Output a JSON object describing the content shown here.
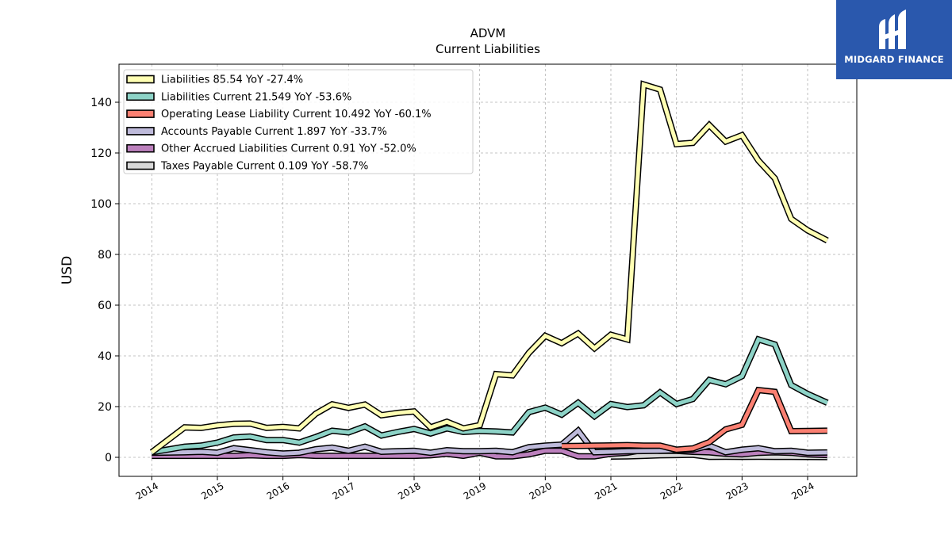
{
  "brand": {
    "name": "MIDGARD FINANCE",
    "icon": "midgard-logo-icon",
    "color": "#2a58ad"
  },
  "chart_data": {
    "type": "line",
    "title": "ADVM",
    "subtitle": "Current  Liabilities",
    "xlabel": "",
    "ylabel": "USD",
    "xlim": [
      2013.5,
      2024.75
    ],
    "ylim": [
      -7.5,
      155
    ],
    "grid": true,
    "legend_position": "top-left",
    "x_ticks": [
      "2014",
      "2015",
      "2016",
      "2017",
      "2018",
      "2019",
      "2020",
      "2021",
      "2022",
      "2023",
      "2024"
    ],
    "y_ticks": [
      0,
      20,
      40,
      60,
      80,
      100,
      120,
      140
    ],
    "series": [
      {
        "name": "Liabilities",
        "legend": "Liabilities  85.54 YoY -27.4%",
        "color": "#ffffb3",
        "x": [
          2014.0,
          2014.5,
          2014.75,
          2015.0,
          2015.25,
          2015.5,
          2015.75,
          2016.0,
          2016.25,
          2016.5,
          2016.75,
          2017.0,
          2017.25,
          2017.5,
          2017.75,
          2018.0,
          2018.25,
          2018.5,
          2018.75,
          2019.0,
          2019.25,
          2019.5,
          2019.75,
          2020.0,
          2020.25,
          2020.5,
          2020.75,
          2021.0,
          2021.25,
          2021.5,
          2021.75,
          2022.0,
          2022.25,
          2022.5,
          2022.75,
          2023.0,
          2023.25,
          2023.5,
          2023.75,
          2024.0,
          2024.3
        ],
        "values": [
          2.0,
          11.8,
          11.6,
          12.6,
          13.2,
          13.3,
          11.6,
          12.0,
          11.4,
          17.2,
          20.9,
          19.5,
          20.8,
          16.6,
          17.5,
          18.1,
          11.8,
          14.0,
          11.4,
          12.7,
          32.8,
          32.3,
          41.2,
          47.9,
          45.0,
          48.8,
          43.0,
          48.3,
          46.5,
          147.0,
          145.0,
          123.5,
          124.0,
          131.0,
          124.5,
          127.0,
          117.0,
          110.0,
          94.0,
          89.5,
          85.5
        ]
      },
      {
        "name": "Liabilities Current",
        "legend": "Liabilities Current  21.549 YoY -53.6%",
        "color": "#8dd3c7",
        "x": [
          2014.0,
          2014.5,
          2014.75,
          2015.0,
          2015.25,
          2015.5,
          2015.75,
          2016.0,
          2016.25,
          2016.5,
          2016.75,
          2017.0,
          2017.25,
          2017.5,
          2017.75,
          2018.0,
          2018.25,
          2018.5,
          2018.75,
          2019.0,
          2019.25,
          2019.5,
          2019.75,
          2020.0,
          2020.25,
          2020.5,
          2020.75,
          2021.0,
          2021.25,
          2021.5,
          2021.75,
          2022.0,
          2022.25,
          2022.5,
          2022.75,
          2023.0,
          2023.25,
          2023.5,
          2023.75,
          2024.0,
          2024.3
        ],
        "values": [
          2.0,
          4.2,
          4.6,
          5.8,
          7.8,
          8.2,
          6.8,
          6.8,
          5.8,
          8.0,
          10.5,
          9.8,
          12.2,
          8.6,
          10.0,
          11.2,
          9.4,
          11.4,
          10.0,
          10.4,
          10.2,
          9.8,
          17.8,
          19.6,
          16.8,
          21.5,
          16.2,
          21.0,
          19.8,
          20.5,
          25.6,
          21.0,
          23.0,
          30.5,
          28.8,
          32.0,
          46.5,
          44.5,
          28.5,
          25.0,
          21.5
        ]
      },
      {
        "name": "Operating Lease Liability Current",
        "legend": "Operating Lease Liability Current  10.492 YoY -60.1%",
        "color": "#fb8072",
        "x": [
          2020.25,
          2020.5,
          2020.75,
          2021.0,
          2021.25,
          2021.5,
          2021.75,
          2022.0,
          2022.25,
          2022.5,
          2022.75,
          2023.0,
          2023.25,
          2023.5,
          2023.75,
          2024.0,
          2024.3
        ],
        "values": [
          4.4,
          4.5,
          4.6,
          4.7,
          4.8,
          4.6,
          4.6,
          3.0,
          3.5,
          6.0,
          11.0,
          12.8,
          26.5,
          25.8,
          10.3,
          10.4,
          10.5
        ]
      },
      {
        "name": "Accounts Payable Current",
        "legend": "Accounts Payable Current  1.897 YoY -33.7%",
        "color": "#bebada",
        "x": [
          2014.0,
          2014.5,
          2014.75,
          2015.0,
          2015.25,
          2015.5,
          2015.75,
          2016.0,
          2016.25,
          2016.5,
          2016.75,
          2017.0,
          2017.25,
          2017.5,
          2017.75,
          2018.0,
          2018.25,
          2018.5,
          2018.75,
          2019.0,
          2019.25,
          2019.5,
          2019.75,
          2020.0,
          2020.25,
          2020.5,
          2020.75,
          2021.0,
          2021.25,
          2021.5,
          2021.75,
          2022.0,
          2022.25,
          2022.5,
          2022.75,
          2023.0,
          2023.25,
          2023.5,
          2023.75,
          2024.0,
          2024.3
        ],
        "values": [
          1.8,
          2.0,
          2.2,
          1.8,
          3.6,
          2.8,
          2.0,
          1.5,
          1.8,
          3.2,
          3.8,
          2.6,
          4.2,
          2.2,
          2.4,
          2.6,
          1.8,
          2.8,
          2.4,
          2.4,
          2.6,
          2.0,
          4.0,
          4.6,
          5.0,
          10.5,
          2.0,
          2.2,
          2.4,
          2.5,
          2.6,
          2.8,
          3.0,
          4.6,
          2.0,
          3.0,
          3.6,
          2.4,
          2.6,
          1.8,
          1.9
        ]
      },
      {
        "name": "Other Accrued Liabilities Current",
        "legend": "Other Accrued Liabilities Current  0.91 YoY -52.0%",
        "color": "#bc80bd",
        "x": [
          2014.0,
          2014.5,
          2014.75,
          2015.0,
          2015.25,
          2015.5,
          2015.75,
          2016.0,
          2016.25,
          2016.5,
          2016.75,
          2017.0,
          2017.25,
          2017.5,
          2017.75,
          2018.0,
          2018.25,
          2018.5,
          2018.75,
          2019.0,
          2019.25,
          2019.5,
          2019.75,
          2020.0,
          2020.25,
          2020.5,
          2020.75,
          2021.0,
          2021.25,
          2021.5,
          2021.75,
          2022.0,
          2022.25,
          2022.5,
          2022.75,
          2023.0,
          2023.25,
          2023.5,
          2023.75,
          2024.0,
          2024.3
        ],
        "values": [
          0.6,
          0.6,
          0.6,
          0.6,
          0.6,
          0.8,
          0.6,
          0.6,
          0.9,
          0.6,
          0.6,
          0.6,
          0.6,
          0.6,
          0.6,
          0.6,
          0.8,
          1.4,
          0.6,
          1.8,
          0.4,
          0.4,
          1.2,
          2.6,
          2.6,
          0.4,
          0.4,
          1.4,
          1.8,
          3.0,
          2.6,
          2.6,
          2.2,
          2.0,
          1.4,
          1.2,
          1.8,
          2.0,
          1.8,
          1.2,
          0.9
        ]
      },
      {
        "name": "Taxes Payable Current",
        "legend": "Taxes Payable Current  0.109 YoY -58.7%",
        "color": "#d9d9d9",
        "x": [
          2021.0,
          2021.25,
          2021.5,
          2021.75,
          2022.0,
          2022.25,
          2022.5,
          2022.75,
          2023.0,
          2023.25,
          2023.5,
          2023.75,
          2024.0,
          2024.3
        ],
        "values": [
          0.3,
          0.4,
          0.6,
          0.8,
          0.9,
          1.0,
          0.2,
          0.25,
          0.2,
          0.25,
          0.2,
          0.2,
          0.15,
          0.11
        ]
      }
    ]
  }
}
